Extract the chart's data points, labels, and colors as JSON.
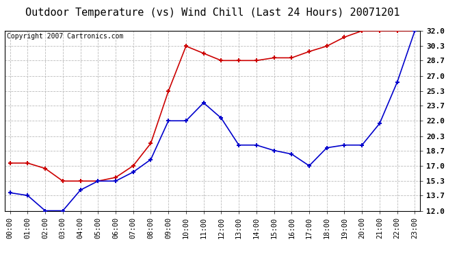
{
  "title": "Outdoor Temperature (vs) Wind Chill (Last 24 Hours) 20071201",
  "copyright": "Copyright 2007 Cartronics.com",
  "x_labels": [
    "00:00",
    "01:00",
    "02:00",
    "03:00",
    "04:00",
    "05:00",
    "06:00",
    "07:00",
    "08:00",
    "09:00",
    "10:00",
    "11:00",
    "12:00",
    "13:00",
    "14:00",
    "15:00",
    "16:00",
    "17:00",
    "18:00",
    "19:00",
    "20:00",
    "21:00",
    "22:00",
    "23:00"
  ],
  "temp_red": [
    17.3,
    17.3,
    16.7,
    15.3,
    15.3,
    15.3,
    15.7,
    17.0,
    19.5,
    25.3,
    30.3,
    29.5,
    28.7,
    28.7,
    28.7,
    29.0,
    29.0,
    29.7,
    30.3,
    31.3,
    32.0,
    32.0,
    32.0,
    32.0
  ],
  "wind_blue": [
    14.0,
    13.7,
    12.0,
    12.0,
    14.3,
    15.3,
    15.3,
    16.3,
    17.7,
    22.0,
    22.0,
    24.0,
    22.3,
    19.3,
    19.3,
    18.7,
    18.3,
    17.0,
    19.0,
    19.3,
    19.3,
    21.7,
    26.3,
    32.0
  ],
  "ylim_min": 12.0,
  "ylim_max": 32.0,
  "yticks": [
    12.0,
    13.7,
    15.3,
    17.0,
    18.7,
    20.3,
    22.0,
    23.7,
    25.3,
    27.0,
    28.7,
    30.3,
    32.0
  ],
  "red_color": "#cc0000",
  "blue_color": "#0000cc",
  "bg_color": "#ffffff",
  "plot_bg_color": "#ffffff",
  "grid_color": "#bbbbbb",
  "title_fontsize": 11,
  "tick_fontsize": 7.5,
  "copyright_fontsize": 7
}
